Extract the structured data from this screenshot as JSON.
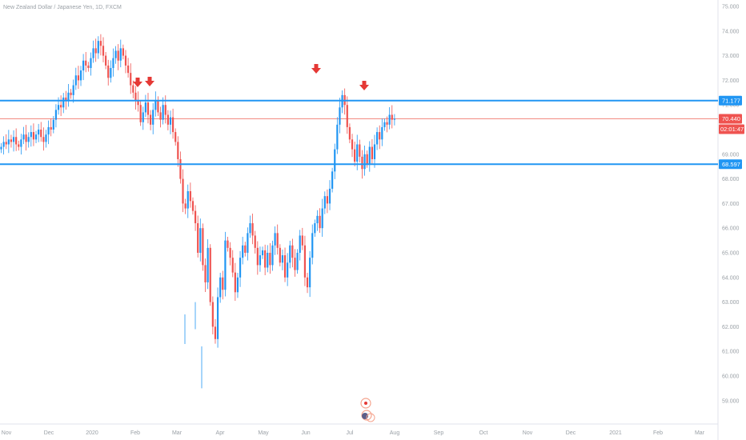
{
  "title": "New Zealand Dollar / Japanese Yen, 1D, FXCM",
  "colors": {
    "up": "#2196f3",
    "down": "#ef5350",
    "hline": "#2196f3",
    "price_line": "#f28b82",
    "arrow": "#e53935",
    "axis_text": "#9aa0a6",
    "grid_border": "#e0e3eb"
  },
  "chart_data": {
    "type": "candlestick",
    "title": "New Zealand Dollar / Japanese Yen, 1D, FXCM",
    "y_ticks": [
      "75.000",
      "74.000",
      "73.000",
      "72.000",
      "71.000",
      "70.000",
      "69.000",
      "68.000",
      "67.000",
      "66.000",
      "65.000",
      "64.000",
      "63.000",
      "62.000",
      "61.000",
      "60.000",
      "59.000"
    ],
    "x_ticks": [
      "Nov",
      "Dec",
      "2020",
      "Feb",
      "Mar",
      "Apr",
      "May",
      "Jun",
      "Jul",
      "Aug",
      "Sep",
      "Oct",
      "Nov",
      "Dec",
      "2021",
      "Feb",
      "Mar"
    ],
    "ylim": [
      58.2,
      75.2
    ],
    "horizontal_lines": [
      {
        "value": 71.177,
        "label": "71.177"
      },
      {
        "value": 68.597,
        "label": "68.597"
      }
    ],
    "current_price": {
      "value": 70.44,
      "label": "70.440",
      "countdown": "02:01:47"
    },
    "arrow_markers_above_peaks": 4,
    "closes": [
      69.3,
      69.5,
      69.4,
      69.6,
      69.5,
      69.7,
      69.4,
      69.3,
      69.6,
      69.8,
      69.5,
      69.7,
      69.9,
      69.6,
      69.8,
      70.0,
      69.7,
      69.5,
      69.8,
      70.1,
      70.0,
      70.4,
      70.8,
      71.0,
      70.9,
      71.3,
      71.2,
      71.5,
      71.4,
      71.8,
      72.2,
      72.0,
      72.4,
      72.8,
      72.6,
      72.5,
      72.9,
      73.3,
      73.1,
      73.6,
      73.4,
      73.0,
      72.6,
      72.1,
      72.5,
      72.9,
      73.2,
      72.8,
      73.3,
      73.0,
      72.6,
      72.3,
      71.8,
      71.5,
      71.2,
      71.0,
      70.3,
      70.7,
      71.1,
      70.6,
      70.2,
      70.8,
      71.2,
      70.7,
      70.4,
      71.0,
      70.6,
      70.2,
      70.5,
      69.9,
      69.5,
      68.8,
      68.0,
      67.0,
      66.8,
      67.5,
      67.1,
      66.7,
      66.2,
      65.0,
      66.0,
      64.5,
      63.8,
      65.2,
      63.0,
      62.0,
      61.5,
      63.2,
      64.0,
      63.5,
      65.5,
      65.2,
      64.8,
      64.2,
      63.4,
      64.0,
      64.8,
      65.3,
      65.0,
      65.8,
      66.2,
      65.7,
      65.2,
      64.5,
      64.9,
      65.1,
      64.4,
      65.0,
      64.5,
      65.3,
      65.8,
      65.2,
      64.6,
      64.9,
      64.0,
      64.6,
      65.3,
      64.8,
      64.3,
      65.0,
      65.7,
      65.3,
      64.0,
      63.6,
      64.8,
      65.8,
      66.2,
      66.5,
      66.0,
      66.8,
      67.3,
      67.0,
      67.6,
      68.3,
      69.2,
      70.2,
      70.9,
      71.4,
      71.0,
      70.1,
      69.6,
      69.2,
      68.7,
      69.4,
      68.9,
      68.4,
      69.0,
      68.6,
      69.3,
      68.8,
      69.4,
      69.9,
      69.6,
      70.1,
      70.3,
      70.2,
      70.6,
      70.4,
      70.44
    ]
  }
}
